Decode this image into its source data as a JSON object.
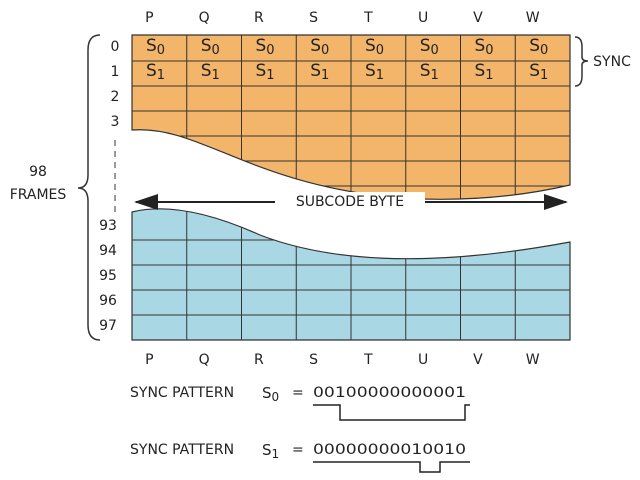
{
  "columns_top": [
    "P",
    "Q",
    "R",
    "S",
    "T",
    "U",
    "V",
    "W"
  ],
  "columns_bottom": [
    "P",
    "Q",
    "R",
    "S",
    "T",
    "U",
    "V",
    "W"
  ],
  "top_rows": [
    "0",
    "1",
    "2",
    "3"
  ],
  "bottom_rows": [
    "93",
    "94",
    "95",
    "96",
    "97"
  ],
  "sync_cells": [
    [
      {
        "letter": "S",
        "sub": "0"
      },
      {
        "letter": "S",
        "sub": "0"
      },
      {
        "letter": "S",
        "sub": "0"
      },
      {
        "letter": "S",
        "sub": "0"
      },
      {
        "letter": "S",
        "sub": "0"
      },
      {
        "letter": "S",
        "sub": "0"
      },
      {
        "letter": "S",
        "sub": "0"
      },
      {
        "letter": "S",
        "sub": "0"
      }
    ],
    [
      {
        "letter": "S",
        "sub": "1"
      },
      {
        "letter": "S",
        "sub": "1"
      },
      {
        "letter": "S",
        "sub": "1"
      },
      {
        "letter": "S",
        "sub": "1"
      },
      {
        "letter": "S",
        "sub": "1"
      },
      {
        "letter": "S",
        "sub": "1"
      },
      {
        "letter": "S",
        "sub": "1"
      },
      {
        "letter": "S",
        "sub": "1"
      }
    ]
  ],
  "sync_label": "SYNC",
  "frames_count": "98",
  "frames_label": "FRAMES",
  "subcode_label": "SUBCODE BYTE",
  "patterns": [
    {
      "label": "SYNC PATTERN",
      "letter": "S",
      "sub": "0",
      "equals": "=",
      "bits": "00100000000001"
    },
    {
      "label": "SYNC PATTERN",
      "letter": "S",
      "sub": "1",
      "equals": "=",
      "bits": "00000000010010"
    }
  ]
}
